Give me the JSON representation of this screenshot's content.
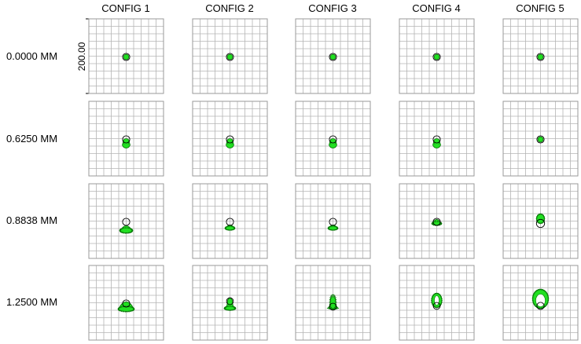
{
  "columns": [
    "CONFIG 1",
    "CONFIG 2",
    "CONFIG 3",
    "CONFIG 4",
    "CONFIG 5"
  ],
  "rows": [
    "0.0000 MM",
    "0.6250 MM",
    "0.8838 MM",
    "1.2500 MM"
  ],
  "scale_label": "200.00",
  "grid": {
    "divisions": 10,
    "line_color": "#b4b4b4",
    "frame_color": "#9a9a9a"
  },
  "spot": {
    "fill": "#22e022",
    "edge": "#0a7a0a",
    "airy_ring": "#000000"
  },
  "spots": [
    [
      "dot",
      "dot",
      "dot",
      "dot",
      "dot"
    ],
    [
      "cap-small",
      "cap-small",
      "cap-small",
      "cap-small",
      "dot"
    ],
    [
      "fan",
      "fan-small",
      "fan-small",
      "cap-top",
      "drop-down"
    ],
    [
      "flare",
      "bell",
      "column",
      "ring-tall",
      "ring-large"
    ]
  ]
}
